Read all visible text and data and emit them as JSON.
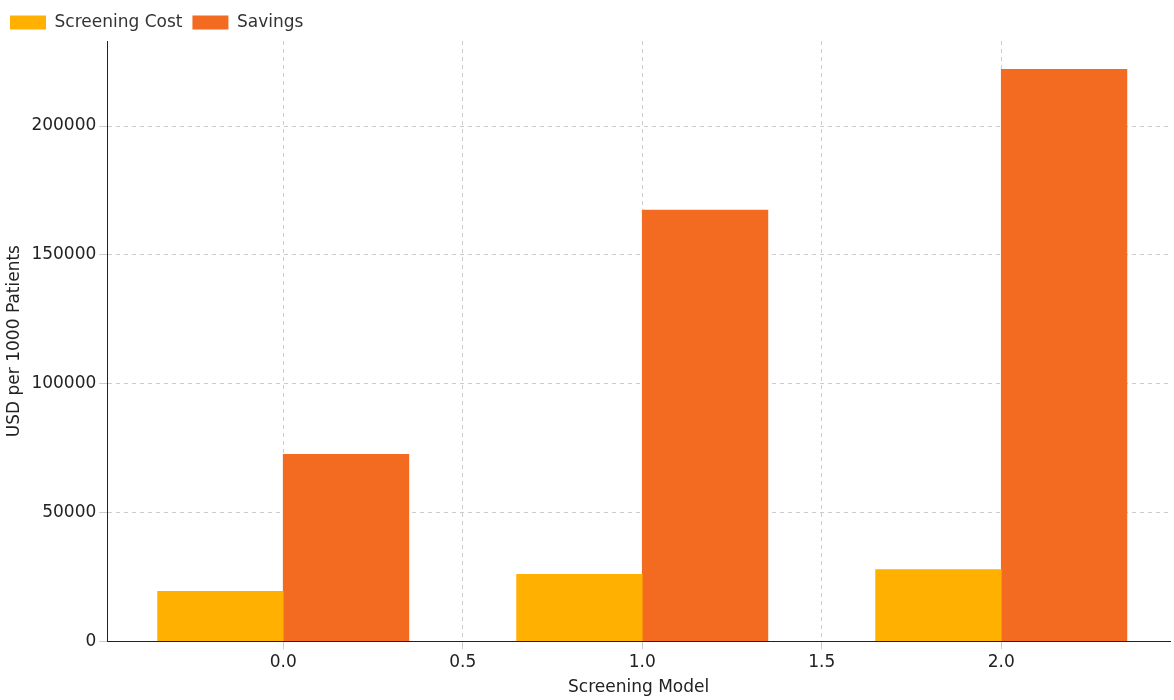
{
  "chart_data": {
    "type": "bar",
    "xlabel": "Screening Model",
    "ylabel": "USD per 1000 Patients",
    "series": [
      {
        "name": "Screening Cost",
        "color": "#ffb000",
        "x": [
          -0.175,
          0.825,
          1.825
        ],
        "values": [
          19400,
          26000,
          27800
        ]
      },
      {
        "name": "Savings",
        "color": "#f26b21",
        "x": [
          0.175,
          1.175,
          2.175
        ],
        "values": [
          72500,
          167400,
          222000
        ]
      }
    ],
    "xlim": [
      -0.49,
      2.47
    ],
    "xticks": [
      {
        "value": 0,
        "label": "0.0"
      },
      {
        "value": 0.5,
        "label": "0.5"
      },
      {
        "value": 1,
        "label": "1.0"
      },
      {
        "value": 1.5,
        "label": "1.5"
      },
      {
        "value": 2,
        "label": "2.0"
      }
    ],
    "ylim": [
      0,
      233000
    ],
    "yticks": [
      0,
      50000,
      100000,
      150000,
      200000
    ],
    "grid": true,
    "legend": "top left"
  }
}
